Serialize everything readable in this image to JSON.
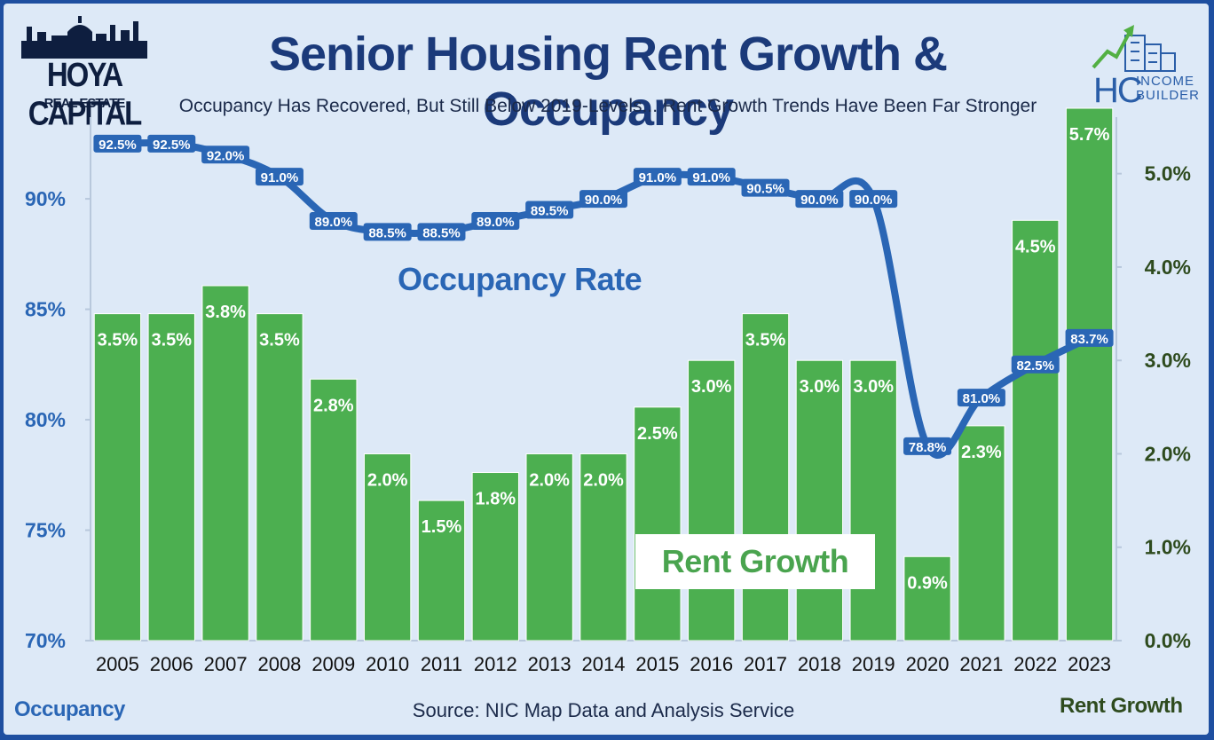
{
  "header": {
    "title": "Senior Housing Rent Growth & Occupancy",
    "subtitle": "Occupancy Has Recovered, But Still Below 2019-Levels... Rent Growth Trends Have Been Far Stronger"
  },
  "logos": {
    "left_name": "HOYA CAPITAL",
    "left_sub": "REAL ESTATE",
    "right_hc": "HC",
    "right_line1": "INCOME",
    "right_line2": "BUILDER"
  },
  "footer": {
    "left_axis_name": "Occupancy",
    "right_axis_name": "Rent Growth",
    "source": "Source: NIC Map Data and Analysis Service"
  },
  "annotations": {
    "occupancy_series": "Occupancy Rate",
    "rent_series": "Rent Growth"
  },
  "colors": {
    "bar": "#4caf50",
    "bar_stroke": "#ffffff",
    "line": "#2a66b5",
    "left_axis_text": "#2a66b5",
    "right_axis_text": "#2e4b1e",
    "background": "#dde9f7",
    "frame": "#1e4fa0"
  },
  "chart_data": {
    "type": "bar",
    "title": "Senior Housing Rent Growth & Occupancy",
    "categories": [
      "2005",
      "2006",
      "2007",
      "2008",
      "2009",
      "2010",
      "2011",
      "2012",
      "2013",
      "2014",
      "2015",
      "2016",
      "2017",
      "2018",
      "2019",
      "2020",
      "2021",
      "2022",
      "2023"
    ],
    "series": [
      {
        "name": "Rent Growth",
        "type": "bar",
        "axis": "right",
        "values": [
          3.5,
          3.5,
          3.8,
          3.5,
          2.8,
          2.0,
          1.5,
          1.8,
          2.0,
          2.0,
          2.5,
          3.0,
          3.5,
          3.0,
          3.0,
          0.9,
          2.3,
          4.5,
          5.7
        ],
        "labels": [
          "3.5%",
          "3.5%",
          "3.8%",
          "3.5%",
          "2.8%",
          "2.0%",
          "1.5%",
          "1.8%",
          "2.0%",
          "2.0%",
          "2.5%",
          "3.0%",
          "3.5%",
          "3.0%",
          "3.0%",
          "0.9%",
          "2.3%",
          "4.5%",
          "5.7%"
        ]
      },
      {
        "name": "Occupancy Rate",
        "type": "line",
        "axis": "left",
        "values": [
          92.5,
          92.5,
          92.0,
          91.0,
          89.0,
          88.5,
          88.5,
          89.0,
          89.5,
          90.0,
          91.0,
          91.0,
          90.5,
          90.0,
          90.0,
          78.8,
          81.0,
          82.5,
          83.7
        ],
        "labels": [
          "92.5%",
          "92.5%",
          "92.0%",
          "91.0%",
          "89.0%",
          "88.5%",
          "88.5%",
          "89.0%",
          "89.5%",
          "90.0%",
          "91.0%",
          "91.0%",
          "90.5%",
          "90.0%",
          "90.0%",
          "78.8%",
          "81.0%",
          "82.5%",
          "83.7%"
        ]
      }
    ],
    "y_left": {
      "label": "Occupancy",
      "ylim": [
        70,
        94.1
      ],
      "ticks": [
        70,
        75,
        80,
        85,
        90
      ],
      "tick_labels": [
        "70%",
        "75%",
        "80%",
        "85%",
        "90%"
      ]
    },
    "y_right": {
      "label": "Rent Growth",
      "ylim": [
        0,
        5.7
      ],
      "ticks": [
        0,
        1,
        2,
        3,
        4,
        5
      ],
      "tick_labels": [
        "0.0%",
        "1.0%",
        "2.0%",
        "3.0%",
        "4.0%",
        "5.0%"
      ]
    },
    "grid": false,
    "legend": "none"
  }
}
